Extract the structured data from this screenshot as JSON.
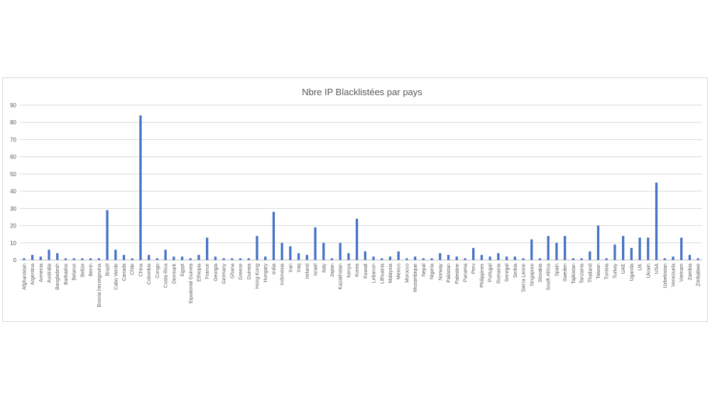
{
  "chart_data": {
    "type": "bar",
    "title": "Nbre IP Blacklistées par pays",
    "xlabel": "",
    "ylabel": "",
    "ylim": [
      0,
      90
    ],
    "yticks": [
      0,
      10,
      20,
      30,
      40,
      50,
      60,
      70,
      80,
      90
    ],
    "grid": true,
    "legend": "none",
    "bar_color": "#4472c4",
    "categories": [
      "Afghanistan",
      "Argentina",
      "Armenia",
      "Australia",
      "Bangladesh",
      "Barbados",
      "Belarus",
      "Belize",
      "Benin",
      "Bosnia herzegovina",
      "Brazil",
      "Cabo Verde",
      "Canada",
      "Chile",
      "China",
      "Colombia",
      "Congo",
      "Costa Rica",
      "Denmark",
      "Egypt",
      "Equatorial Guinea",
      "Ethiopia",
      "France",
      "Georgia",
      "Germany",
      "Ghana",
      "Greece",
      "Guinea",
      "Hong-Kong",
      "Hungary",
      "India",
      "Indonesia",
      "Iran",
      "Iraq",
      "Ireland",
      "Israel",
      "Italy",
      "Japan",
      "Kazakhstan",
      "Kenya",
      "Korea",
      "Kuwait",
      "Lebanon",
      "Lithuania",
      "Malaysia",
      "Mexico",
      "Morocco",
      "Mozambique",
      "Nepal",
      "Nigeria",
      "Norway",
      "Pakistan",
      "Palestine",
      "Panama",
      "Peru",
      "Philippines",
      "Portugal",
      "Romania",
      "Senegal",
      "Serbia",
      "Sierra Leone",
      "Singapore",
      "Slovakia",
      "South Africa",
      "Spain",
      "Sweden",
      "Tajikistan",
      "Tanzania",
      "Thailand",
      "Taiwan",
      "Tunisia",
      "Turkey",
      "UAE",
      "Uganda",
      "UK",
      "Ukrain",
      "USA",
      "Uzbekistan",
      "Venezuela",
      "Vietnam",
      "Zambia",
      "Zimbabwe"
    ],
    "values": [
      1,
      3,
      2,
      6,
      4,
      1,
      1,
      1,
      1,
      1,
      29,
      6,
      3,
      1,
      84,
      3,
      1,
      6,
      2,
      2,
      1,
      3,
      13,
      2,
      1,
      1,
      1,
      1,
      14,
      2,
      28,
      10,
      8,
      4,
      3,
      19,
      10,
      1,
      10,
      4,
      24,
      5,
      2,
      1,
      2,
      5,
      1,
      2,
      1,
      1,
      4,
      3,
      2,
      1,
      7,
      3,
      2,
      4,
      2,
      2,
      1,
      12,
      1,
      14,
      10,
      14,
      1,
      1,
      5,
      20,
      1,
      9,
      14,
      7,
      13,
      13,
      45,
      1,
      2,
      13,
      3,
      1
    ]
  }
}
